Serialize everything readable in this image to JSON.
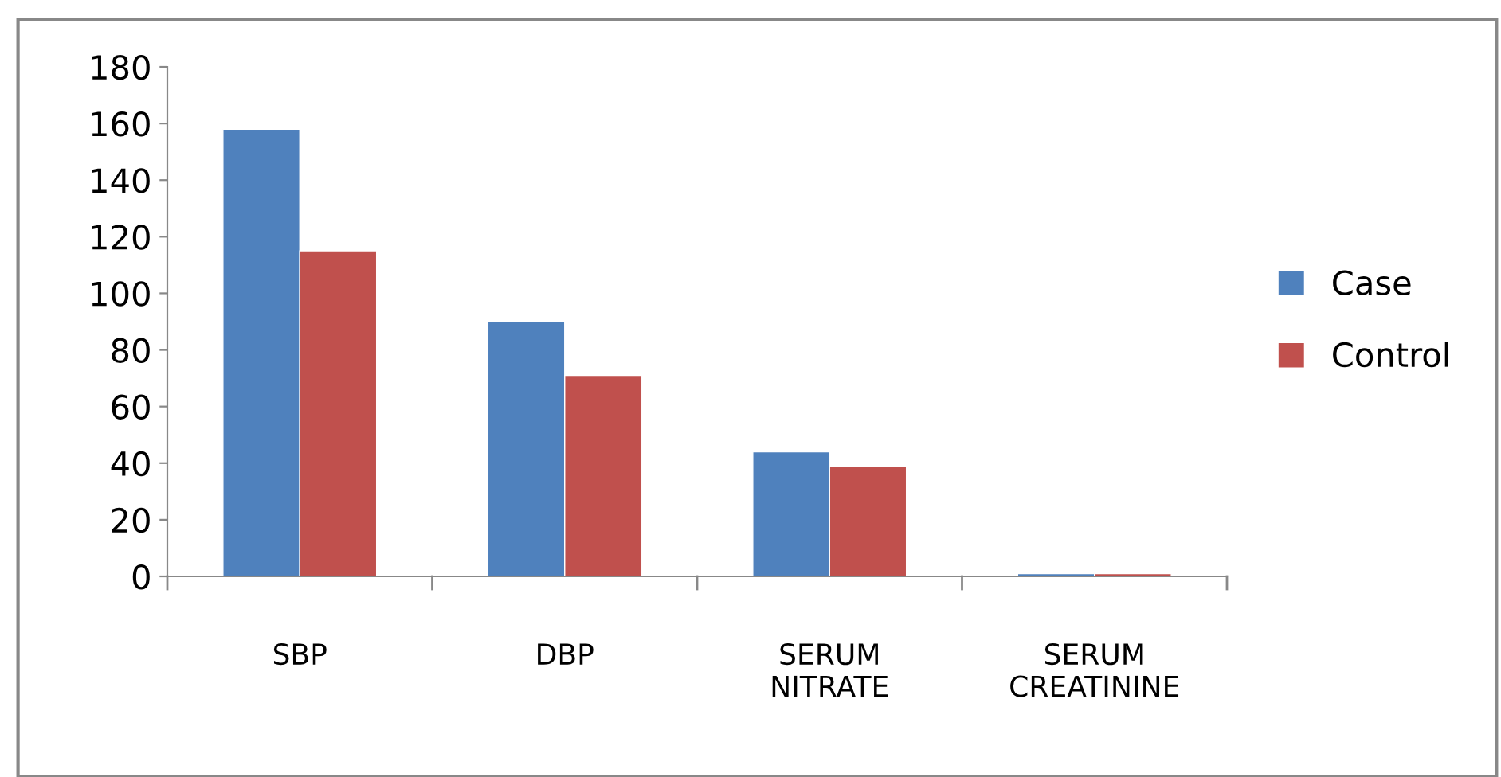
{
  "chart_data": {
    "type": "bar",
    "categories": [
      "SBP",
      "DBP",
      "SERUM\nNITRATE",
      "SERUM\nCREATININE"
    ],
    "series": [
      {
        "name": "Case",
        "color": "#4f81bd",
        "values": [
          158,
          90,
          44,
          1
        ]
      },
      {
        "name": "Control",
        "color": "#c0504d",
        "values": [
          115,
          71,
          39,
          1
        ]
      }
    ],
    "ylim": [
      0,
      180
    ],
    "yticks": [
      0,
      20,
      40,
      60,
      80,
      100,
      120,
      140,
      160,
      180
    ],
    "grid": false,
    "legend": "right"
  }
}
